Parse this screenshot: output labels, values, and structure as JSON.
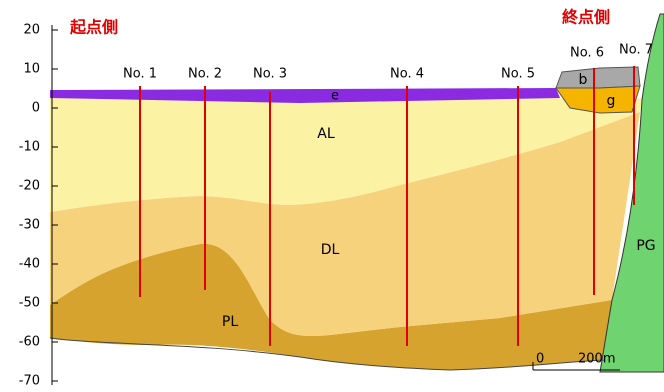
{
  "headings": {
    "start": "起点側",
    "end": "終点側"
  },
  "axis": {
    "yticks": [
      20,
      10,
      0,
      -10,
      -20,
      -30,
      -40,
      -50,
      -60,
      -70
    ]
  },
  "boreholes": [
    "No. 1",
    "No. 2",
    "No. 3",
    "No. 4",
    "No. 5",
    "No. 6",
    "No. 7"
  ],
  "layers": {
    "al": "AL",
    "dl": "DL",
    "pl": "PL",
    "pg": "PG",
    "b": "b",
    "g": "g",
    "e": "e"
  },
  "scale": {
    "zero": "0",
    "length": "200m"
  }
}
